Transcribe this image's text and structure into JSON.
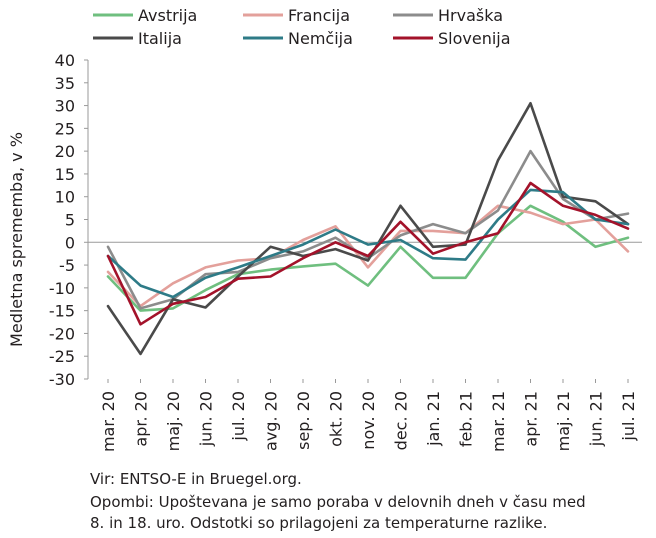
{
  "chart_data": {
    "type": "line",
    "title": "",
    "ylabel": "Medletna sprememba, v %",
    "xlabel": "",
    "ylim": [
      -30,
      40
    ],
    "ytick_step": 5,
    "grid": false,
    "legend_position": "top",
    "categories": [
      "mar. 20",
      "apr. 20",
      "maj. 20",
      "jun. 20",
      "jul. 20",
      "avg. 20",
      "sep. 20",
      "okt. 20",
      "nov. 20",
      "dec. 20",
      "jan. 21",
      "feb. 21",
      "mar. 21",
      "apr. 21",
      "maj. 21",
      "jun. 21",
      "jul. 21"
    ],
    "series": [
      {
        "name": "Avstrija",
        "color": "#6fbf7f",
        "values": [
          -7.5,
          -15,
          -14.5,
          -10.5,
          -7,
          -6,
          -5.3,
          -4.7,
          -9.5,
          -1,
          -7.8,
          -7.8,
          2,
          8,
          4.5,
          -1,
          1
        ]
      },
      {
        "name": "Francija",
        "color": "#e3a09b",
        "values": [
          -6.5,
          -14,
          -9,
          -5.5,
          -4,
          -3.5,
          0.5,
          3.5,
          -5.5,
          2.5,
          2.5,
          2,
          8,
          6.5,
          4,
          5,
          -2
        ]
      },
      {
        "name": "Hrvaška",
        "color": "#8c8c8c",
        "values": [
          -1,
          -14.5,
          -12.5,
          -7,
          -6.5,
          -3.5,
          -2,
          1,
          -3.5,
          1.5,
          4,
          2,
          7,
          20,
          9.5,
          5,
          6.3
        ]
      },
      {
        "name": "Italija",
        "color": "#4a4a4a",
        "values": [
          -14,
          -24.5,
          -12.5,
          -14.3,
          -7.5,
          -1,
          -3,
          -1.5,
          -4,
          8,
          -1,
          -0.5,
          18,
          30.5,
          10,
          9,
          4
        ]
      },
      {
        "name": "Nemčija",
        "color": "#2e7b87",
        "values": [
          -3,
          -9.5,
          -12,
          -7.8,
          -5.5,
          -3,
          -0.5,
          2.8,
          -0.5,
          0.5,
          -3.5,
          -3.8,
          5,
          11.5,
          11,
          5,
          4
        ]
      },
      {
        "name": "Slovenija",
        "color": "#a3122a",
        "values": [
          -3,
          -18,
          -13.5,
          -12,
          -8,
          -7.5,
          -3.5,
          0,
          -3,
          4.5,
          -2.5,
          0,
          2,
          13,
          8,
          6,
          3
        ]
      }
    ]
  },
  "footer": {
    "line1": "Vir: ENTSO-E in Bruegel.org.",
    "line2": "Opombi: Upoštevana je samo poraba v delovnih dneh v času med",
    "line3": "8. in 18. uro. Odstotki so prilagojeni za temperaturne razlike."
  }
}
